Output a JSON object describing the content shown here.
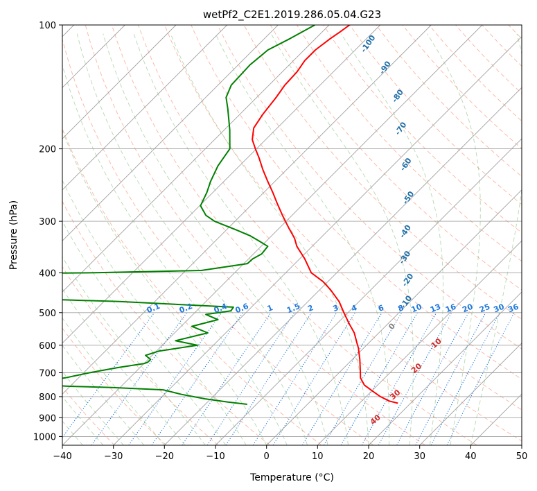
{
  "chart_data": {
    "type": "line",
    "subtype": "skew-t log-p diagram",
    "title": "wetPf2_C2E1.2019.286.05.04.G23",
    "xlabel": "Temperature (°C)",
    "ylabel": "Pressure (hPa)",
    "xlim": [
      -40,
      50
    ],
    "ylim": [
      1050,
      100
    ],
    "y_scale": "log",
    "grid": true,
    "x_ticks": [
      -40,
      -30,
      -20,
      -10,
      0,
      10,
      20,
      30,
      40,
      50
    ],
    "y_ticks": [
      100,
      200,
      300,
      400,
      500,
      600,
      700,
      800,
      900,
      1000
    ],
    "colors": {
      "temperature": "#ff0000",
      "dewpoint": "#008000",
      "isotherm": "#a0a0a0",
      "dry_adiabat": "#fa8c6e",
      "moist_adiabat": "#5aaa50",
      "mixing_ratio": "#1e78dc",
      "dry_label": "#d22828",
      "moist_label": "#1f6fa8",
      "special": "#d2be9a",
      "gray_label": "#808080"
    },
    "mixing_ratio_labels": [
      "0.1",
      "0.2",
      "0.4",
      "0.6",
      "1",
      "1.5",
      "2",
      "3",
      "4",
      "6",
      "8",
      "10",
      "13",
      "16",
      "20",
      "25",
      "30",
      "36"
    ],
    "mixing_ratio_values": [
      0.1,
      0.2,
      0.4,
      0.6,
      1,
      1.5,
      2,
      3,
      4,
      6,
      8,
      10,
      13,
      16,
      20,
      25,
      30,
      36
    ],
    "moist_adiabat_labels": [
      "-100",
      "-90",
      "-80",
      "-70",
      "-60",
      "-50",
      "-40",
      "-30",
      "-20",
      "-10"
    ],
    "moist_adiabat_label_positions": [
      {
        "p": 112,
        "t": -58
      },
      {
        "p": 128,
        "t": -50
      },
      {
        "p": 150,
        "t": -42
      },
      {
        "p": 180,
        "t": -35
      },
      {
        "p": 220,
        "t": -27
      },
      {
        "p": 265,
        "t": -20
      },
      {
        "p": 320,
        "t": -14
      },
      {
        "p": 370,
        "t": -9
      },
      {
        "p": 420,
        "t": -4
      },
      {
        "p": 475,
        "t": 0
      }
    ],
    "zero_label": "0",
    "zero_label_position": {
      "p": 545,
      "t": 2
    },
    "dry_adiabat_labels": [
      "10",
      "20",
      "30",
      "40"
    ],
    "dry_adiabat_label_positions": [
      {
        "p": 600,
        "t": 14
      },
      {
        "p": 690,
        "t": 15
      },
      {
        "p": 800,
        "t": 16
      },
      {
        "p": 920,
        "t": 17
      }
    ],
    "series": [
      {
        "name": "",
        "role": "temperature",
        "p": [
          830,
          820,
          800,
          775,
          750,
          720,
          700,
          650,
          610,
          590,
          560,
          530,
          500,
          470,
          440,
          420,
          400,
          370,
          345,
          330,
          310,
          290,
          270,
          255,
          240,
          225,
          210,
          200,
          190,
          178,
          165,
          150,
          140,
          130,
          122,
          115,
          108,
          104,
          100
        ],
        "t": [
          17.5,
          15.4,
          12.8,
          10.1,
          7.4,
          5.2,
          4.2,
          1.5,
          -1.0,
          -2.5,
          -4.8,
          -7.8,
          -10.8,
          -13.9,
          -17.9,
          -21.0,
          -25.0,
          -29.0,
          -33.0,
          -35.0,
          -38.4,
          -41.9,
          -45.5,
          -48.3,
          -51.4,
          -54.6,
          -57.8,
          -60.2,
          -62.6,
          -64.6,
          -65.5,
          -66.2,
          -66.9,
          -67.1,
          -67.8,
          -67.8,
          -67.1,
          -66.5,
          -66.0
        ]
      },
      {
        "name": "",
        "role": "dewpoint",
        "p": [
          835,
          825,
          810,
          790,
          775,
          770,
          760,
          755,
          745,
          740,
          730,
          720,
          700,
          680,
          665,
          660,
          650,
          635,
          620,
          600,
          585,
          560,
          540,
          520,
          505,
          495,
          485,
          470,
          460,
          455,
          420,
          408,
          403,
          400,
          395,
          380,
          370,
          360,
          345,
          335,
          325,
          315,
          300,
          290,
          275,
          255,
          240,
          220,
          200,
          180,
          160,
          150,
          140,
          125,
          115,
          108,
          100
        ],
        "t": [
          -11.8,
          -16.0,
          -21.1,
          -26.6,
          -30.0,
          -31.1,
          -41.7,
          -50.2,
          -60.2,
          -62.3,
          -55.4,
          -52.6,
          -48.9,
          -44.3,
          -40.0,
          -39.5,
          -39.5,
          -41.3,
          -39.5,
          -33.1,
          -38.3,
          -33.5,
          -37.9,
          -34.1,
          -37.5,
          -33.3,
          -33.5,
          -57.0,
          -82.0,
          -96.2,
          -112.0,
          -100.0,
          -95.0,
          -67.4,
          -47.0,
          -39.3,
          -39.2,
          -38.4,
          -38.7,
          -41.4,
          -44.3,
          -48.0,
          -54.0,
          -56.9,
          -59.8,
          -61.2,
          -62.6,
          -64.2,
          -65.2,
          -68.9,
          -73.4,
          -76.0,
          -77.4,
          -77.7,
          -77.1,
          -75.0,
          -72.8
        ]
      }
    ]
  }
}
